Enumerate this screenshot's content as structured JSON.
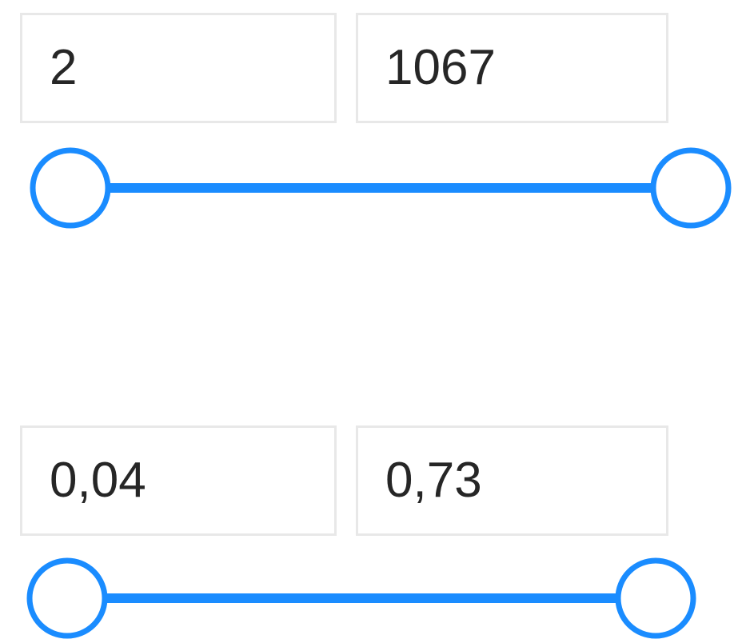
{
  "filters": [
    {
      "min": "2",
      "max": "1067"
    },
    {
      "min": "0,04",
      "max": "0,73"
    }
  ]
}
